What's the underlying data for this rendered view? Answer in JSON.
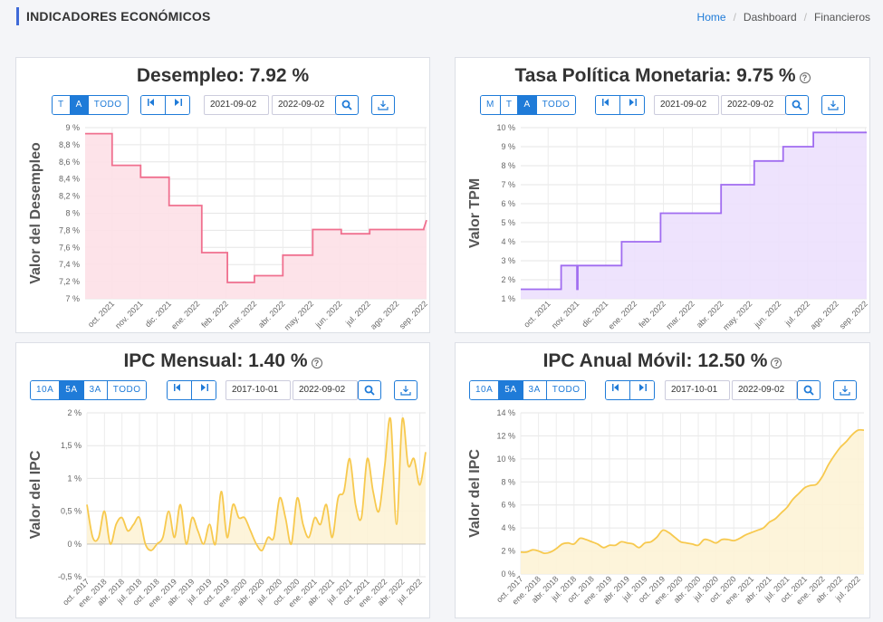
{
  "header": {
    "title": "INDICADORES ECONÓMICOS",
    "breadcrumb": [
      "Home",
      "Dashboard",
      "Financieros"
    ]
  },
  "panels": [
    {
      "id": "desempleo",
      "title": "Desempleo: 7.92 %",
      "help": false,
      "ranges": [
        "T",
        "A",
        "TODO"
      ],
      "active_range": "A",
      "date_from": "2021-09-02",
      "date_to": "2022-09-02",
      "color": "#f0708f",
      "fill": "#fde0e7",
      "chart_data": {
        "type": "area",
        "step": true,
        "ylabel": "Valor del Desempleo",
        "yunit": "",
        "ylim": [
          7,
          9
        ],
        "yticks": [
          7,
          7.2,
          7.4,
          7.6,
          7.8,
          8,
          8.2,
          8.4,
          8.6,
          8.8,
          9
        ],
        "ytick_labels": [
          "7 %",
          "7,2 %",
          "7,4 %",
          "7,6 %",
          "7,8 %",
          "8 %",
          "8,2 %",
          "8,4 %",
          "8,6 %",
          "8,8 %",
          "9 %"
        ],
        "xlim": [
          0,
          12
        ],
        "xticks": [
          0.95,
          1.95,
          2.95,
          3.95,
          4.95,
          5.95,
          6.95,
          7.95,
          8.95,
          9.95,
          10.95,
          11.95
        ],
        "xtick_labels": [
          "oct. 2021",
          "nov. 2021",
          "dic. 2021",
          "ene. 2022",
          "feb. 2022",
          "mar. 2022",
          "abr. 2022",
          "may. 2022",
          "jun. 2022",
          "jul. 2022",
          "ago. 2022",
          "sep. 2022"
        ],
        "x": [
          0,
          0.95,
          0.95,
          1.95,
          1.95,
          2.95,
          2.95,
          4.1,
          4.1,
          5.0,
          5.0,
          5.95,
          5.95,
          6.95,
          6.95,
          8.0,
          8.0,
          9.0,
          9.0,
          10.0,
          10.0,
          11.9,
          11.9,
          12
        ],
        "y": [
          8.93,
          8.93,
          8.56,
          8.56,
          8.42,
          8.42,
          8.09,
          8.09,
          7.54,
          7.54,
          7.19,
          7.19,
          7.27,
          7.27,
          7.51,
          7.51,
          7.81,
          7.81,
          7.76,
          7.76,
          7.81,
          7.81,
          7.82,
          7.92
        ]
      }
    },
    {
      "id": "tpm",
      "title": "Tasa Política Monetaria: 9.75 %",
      "help": true,
      "ranges": [
        "M",
        "T",
        "A",
        "TODO"
      ],
      "active_range": "A",
      "date_from": "2021-09-02",
      "date_to": "2022-09-02",
      "color": "#a06cf0",
      "fill": "#ece0fd",
      "chart_data": {
        "type": "area",
        "step": true,
        "ylabel": "Valor TPM",
        "ylim": [
          1,
          10
        ],
        "yticks": [
          1,
          2,
          3,
          4,
          5,
          6,
          7,
          8,
          9,
          10
        ],
        "ytick_labels": [
          "1 %",
          "2 %",
          "3 %",
          "4 %",
          "5 %",
          "6 %",
          "7 %",
          "8 %",
          "9 %",
          "10 %"
        ],
        "xlim": [
          0,
          12
        ],
        "xticks": [
          0.95,
          1.95,
          2.95,
          3.95,
          4.95,
          5.95,
          6.95,
          7.95,
          8.95,
          9.95,
          10.95,
          11.95
        ],
        "xtick_labels": [
          "oct. 2021",
          "nov. 2021",
          "dic. 2021",
          "ene. 2022",
          "feb. 2022",
          "mar. 2022",
          "abr. 2022",
          "may. 2022",
          "jun. 2022",
          "jul. 2022",
          "ago. 2022",
          "sep. 2022"
        ],
        "x": [
          0,
          1.4,
          1.4,
          1.95,
          1.95,
          1.98,
          1.98,
          3.5,
          3.5,
          4.85,
          4.85,
          6.95,
          6.95,
          8.1,
          8.1,
          9.1,
          9.1,
          10.15,
          10.15,
          12
        ],
        "y": [
          1.5,
          1.5,
          2.75,
          2.75,
          1.5,
          1.5,
          2.75,
          2.75,
          4,
          4,
          5.5,
          5.5,
          7,
          7,
          8.25,
          8.25,
          9,
          9,
          9.75,
          9.75
        ]
      }
    },
    {
      "id": "ipc-mensual",
      "title": "IPC Mensual: 1.40 %",
      "help": true,
      "ranges": [
        "10A",
        "5A",
        "3A",
        "TODO"
      ],
      "active_range": "5A",
      "date_from": "2017-10-01",
      "date_to": "2022-09-02",
      "color": "#f7c94e",
      "fill": "#fdf3d6",
      "chart_data": {
        "type": "area",
        "step": false,
        "ylabel": "Valor del IPC",
        "ylim": [
          -0.5,
          2
        ],
        "yticks": [
          -0.5,
          0,
          0.5,
          1,
          1.5,
          2
        ],
        "ytick_labels": [
          "-0,5 %",
          "0 %",
          "0,5 %",
          "1 %",
          "1,5 %",
          "2 %"
        ],
        "xlim": [
          0,
          58
        ],
        "xticks": [
          0,
          3,
          6,
          9,
          12,
          15,
          18,
          21,
          24,
          27,
          30,
          33,
          36,
          39,
          42,
          45,
          48,
          51,
          54,
          57
        ],
        "xtick_labels": [
          "oct. 2017",
          "ene. 2018",
          "abr. 2018",
          "jul. 2018",
          "oct. 2018",
          "ene. 2019",
          "abr. 2019",
          "jul. 2019",
          "oct. 2019",
          "ene. 2020",
          "abr. 2020",
          "jul. 2020",
          "oct. 2020",
          "ene. 2021",
          "abr. 2021",
          "jul. 2021",
          "oct. 2021",
          "ene. 2022",
          "abr. 2022",
          "jul. 2022"
        ],
        "x": [
          0,
          1,
          2,
          3,
          4,
          5,
          6,
          7,
          8,
          9,
          10,
          11,
          12,
          13,
          14,
          15,
          16,
          17,
          18,
          19,
          20,
          21,
          22,
          23,
          24,
          25,
          26,
          27,
          28,
          29,
          30,
          31,
          32,
          33,
          34,
          35,
          36,
          37,
          38,
          39,
          40,
          41,
          42,
          43,
          44,
          45,
          46,
          47,
          48,
          49,
          50,
          51,
          52,
          53,
          54,
          55,
          56,
          57,
          58
        ],
        "y": [
          0.6,
          0.1,
          0.1,
          0.5,
          0.0,
          0.3,
          0.4,
          0.2,
          0.3,
          0.4,
          0.0,
          -0.1,
          0.0,
          0.1,
          0.5,
          0.1,
          0.6,
          0.0,
          0.4,
          0.2,
          0.0,
          0.3,
          0.0,
          0.8,
          0.1,
          0.6,
          0.4,
          0.4,
          0.2,
          0.0,
          -0.1,
          0.1,
          0.1,
          0.7,
          0.4,
          0.0,
          0.7,
          0.3,
          0.1,
          0.4,
          0.3,
          0.6,
          0.1,
          0.7,
          0.8,
          1.3,
          0.6,
          0.4,
          1.3,
          0.8,
          0.5,
          1.2,
          1.9,
          0.3,
          1.9,
          1.2,
          1.3,
          0.9,
          1.4
        ]
      }
    },
    {
      "id": "ipc-anual",
      "title": "IPC Anual Móvil: 12.50 %",
      "help": true,
      "ranges": [
        "10A",
        "5A",
        "3A",
        "TODO"
      ],
      "active_range": "5A",
      "date_from": "2017-10-01",
      "date_to": "2022-09-02",
      "color": "#f7c94e",
      "fill": "#fdf3d6",
      "chart_data": {
        "type": "area",
        "step": false,
        "ylabel": "Valor del IPC",
        "ylim": [
          0,
          14
        ],
        "yticks": [
          0,
          2,
          4,
          6,
          8,
          10,
          12,
          14
        ],
        "ytick_labels": [
          "0 %",
          "2 %",
          "4 %",
          "6 %",
          "8 %",
          "10 %",
          "12 %",
          "14 %"
        ],
        "xlim": [
          0,
          58
        ],
        "xticks": [
          0,
          3,
          6,
          9,
          12,
          15,
          18,
          21,
          24,
          27,
          30,
          33,
          36,
          39,
          42,
          45,
          48,
          51,
          54,
          57
        ],
        "xtick_labels": [
          "oct. 2017",
          "ene. 2018",
          "abr. 2018",
          "jul. 2018",
          "oct. 2018",
          "ene. 2019",
          "abr. 2019",
          "jul. 2019",
          "oct. 2019",
          "ene. 2020",
          "abr. 2020",
          "jul. 2020",
          "oct. 2020",
          "ene. 2021",
          "abr. 2021",
          "jul. 2021",
          "oct. 2021",
          "ene. 2022",
          "abr. 2022",
          "jul. 2022"
        ],
        "x": [
          0,
          1,
          2,
          3,
          4,
          5,
          6,
          7,
          8,
          9,
          10,
          11,
          12,
          13,
          14,
          15,
          16,
          17,
          18,
          19,
          20,
          21,
          22,
          23,
          24,
          25,
          26,
          27,
          28,
          29,
          30,
          31,
          32,
          33,
          34,
          35,
          36,
          37,
          38,
          39,
          40,
          41,
          42,
          43,
          44,
          45,
          46,
          47,
          48,
          49,
          50,
          51,
          52,
          53,
          54,
          55,
          56,
          57,
          58
        ],
        "y": [
          1.9,
          1.9,
          2.1,
          2.0,
          1.8,
          1.9,
          2.2,
          2.6,
          2.7,
          2.6,
          3.1,
          3.0,
          2.8,
          2.6,
          2.3,
          2.5,
          2.5,
          2.8,
          2.7,
          2.6,
          2.3,
          2.7,
          2.8,
          3.2,
          3.8,
          3.6,
          3.2,
          2.8,
          2.7,
          2.6,
          2.5,
          3.0,
          2.9,
          2.7,
          3.0,
          3.0,
          2.9,
          3.1,
          3.4,
          3.6,
          3.8,
          4.0,
          4.5,
          4.8,
          5.3,
          5.8,
          6.5,
          7.0,
          7.5,
          7.7,
          7.8,
          8.5,
          9.5,
          10.3,
          11.0,
          11.5,
          12.1,
          12.5,
          12.5
        ]
      }
    }
  ]
}
